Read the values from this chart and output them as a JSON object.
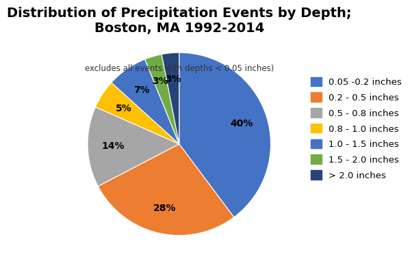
{
  "title": "Distribution of Precipitation Events by Depth;\nBoston, MA 1992-2014",
  "subtitle": "excludes all events with depths < 0.05 inches)",
  "labels": [
    "0.05 -0.2 inches",
    "0.2 - 0.5 inches",
    "0.5 - 0.8 inches",
    "0.8 - 1.0 inches",
    "1.0 - 1.5 inches",
    "1.5 - 2.0 inches",
    "> 2.0 inches"
  ],
  "values": [
    39,
    27,
    14,
    5,
    7,
    3,
    3
  ],
  "colors": [
    "#4472C4",
    "#ED7D31",
    "#A6A6A6",
    "#FFC000",
    "#4472C4",
    "#70AD47",
    "#264478"
  ],
  "startangle": 90,
  "title_fontsize": 14,
  "subtitle_fontsize": 8.5,
  "legend_fontsize": 9.5
}
